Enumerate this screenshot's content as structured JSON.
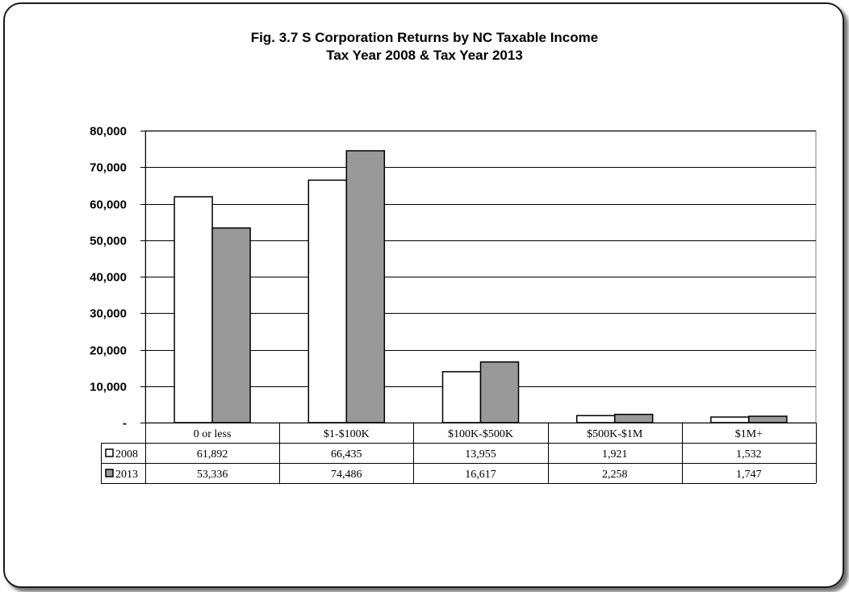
{
  "colors": {
    "series_2008": "#ffffff",
    "series_2013": "#999999",
    "frame": "#1a1a1a"
  },
  "chart_data": {
    "type": "bar",
    "title": "Fig. 3.7  S Corporation Returns by NC Taxable Income",
    "subtitle": "Tax Year 2008 & Tax Year 2013",
    "categories": [
      "0 or less",
      "$1-$100K",
      "$100K-$500K",
      "$500K-$1M",
      "$1M+"
    ],
    "series": [
      {
        "name": "2008",
        "values": [
          61892,
          66435,
          13955,
          1921,
          1532
        ],
        "labels": [
          "61,892",
          "66,435",
          "13,955",
          "1,921",
          "1,532"
        ]
      },
      {
        "name": "2013",
        "values": [
          53336,
          74486,
          16617,
          2258,
          1747
        ],
        "labels": [
          "53,336",
          "74,486",
          "16,617",
          "2,258",
          "1,747"
        ]
      }
    ],
    "yticks": [
      {
        "value": 0,
        "label": "-"
      },
      {
        "value": 10000,
        "label": "10,000"
      },
      {
        "value": 20000,
        "label": "20,000"
      },
      {
        "value": 30000,
        "label": "30,000"
      },
      {
        "value": 40000,
        "label": "40,000"
      },
      {
        "value": 50000,
        "label": "50,000"
      },
      {
        "value": 60000,
        "label": "60,000"
      },
      {
        "value": 70000,
        "label": "70,000"
      },
      {
        "value": 80000,
        "label": "80,000"
      }
    ],
    "ylim": [
      0,
      80000
    ],
    "grid": true,
    "legend": "data-table"
  }
}
